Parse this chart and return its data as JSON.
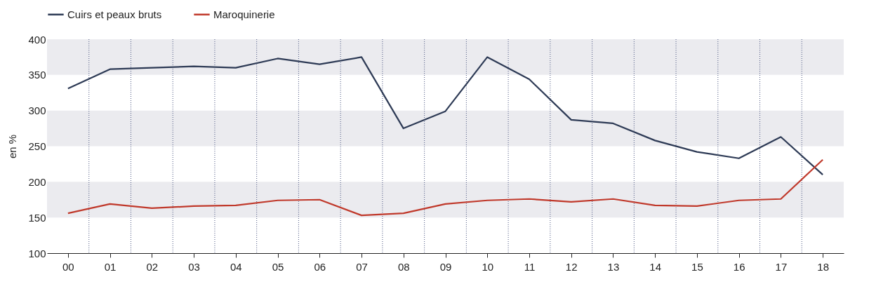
{
  "chart_data": {
    "type": "line",
    "ylabel": "en %",
    "categories": [
      "00",
      "01",
      "02",
      "03",
      "04",
      "05",
      "06",
      "07",
      "08",
      "09",
      "10",
      "11",
      "12",
      "13",
      "14",
      "15",
      "16",
      "17",
      "18"
    ],
    "series": [
      {
        "name": "Cuirs et peaux bruts",
        "color": "#2d3a55",
        "values": [
          331,
          358,
          360,
          362,
          360,
          373,
          365,
          375,
          275,
          299,
          375,
          344,
          287,
          282,
          258,
          242,
          233,
          263,
          210
        ]
      },
      {
        "name": "Maroquinerie",
        "color": "#c0392b",
        "values": [
          156,
          169,
          163,
          166,
          167,
          174,
          175,
          153,
          156,
          169,
          174,
          176,
          172,
          176,
          167,
          166,
          174,
          176,
          231
        ]
      }
    ],
    "ylim": [
      100,
      400
    ],
    "yticks": [
      100,
      150,
      200,
      250,
      300,
      350,
      400
    ],
    "grid": true,
    "legend": "top left",
    "marker": "none",
    "line_style": "solid"
  }
}
